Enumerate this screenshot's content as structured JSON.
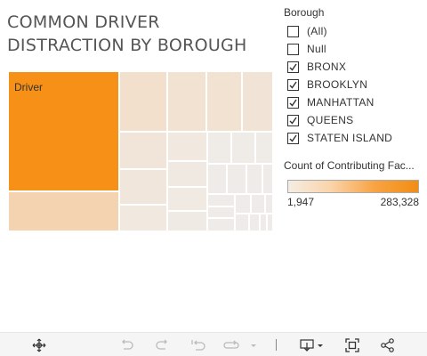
{
  "title": {
    "line1": "COMMON DRIVER",
    "line2": "DISTRACTION BY BOROUGH"
  },
  "treemap": {
    "driver_label": "Driver",
    "colors": {
      "max": "#f79016",
      "high": "#f4d3b0",
      "mid": "#f2e0cd",
      "low": "#f1e9e1",
      "lowest": "#efebe8"
    }
  },
  "filter": {
    "title": "Borough",
    "items": [
      {
        "label": "(All)",
        "checked": false
      },
      {
        "label": "Null",
        "checked": false
      },
      {
        "label": "BRONX",
        "checked": true
      },
      {
        "label": "BROOKLYN",
        "checked": true
      },
      {
        "label": "MANHATTAN",
        "checked": true
      },
      {
        "label": "QUEENS",
        "checked": true
      },
      {
        "label": "STATEN ISLAND",
        "checked": true
      }
    ]
  },
  "legend": {
    "title": "Count of Contributing Fac...",
    "min": "1,947",
    "max": "283,328"
  },
  "toolbar": {
    "icons": [
      "pan-icon",
      "undo-icon",
      "redo-icon",
      "revert-icon",
      "refresh-icon",
      "pause-dropdown-icon",
      "download-icon",
      "download-dropdown-icon",
      "fullscreen-icon",
      "share-icon"
    ]
  }
}
